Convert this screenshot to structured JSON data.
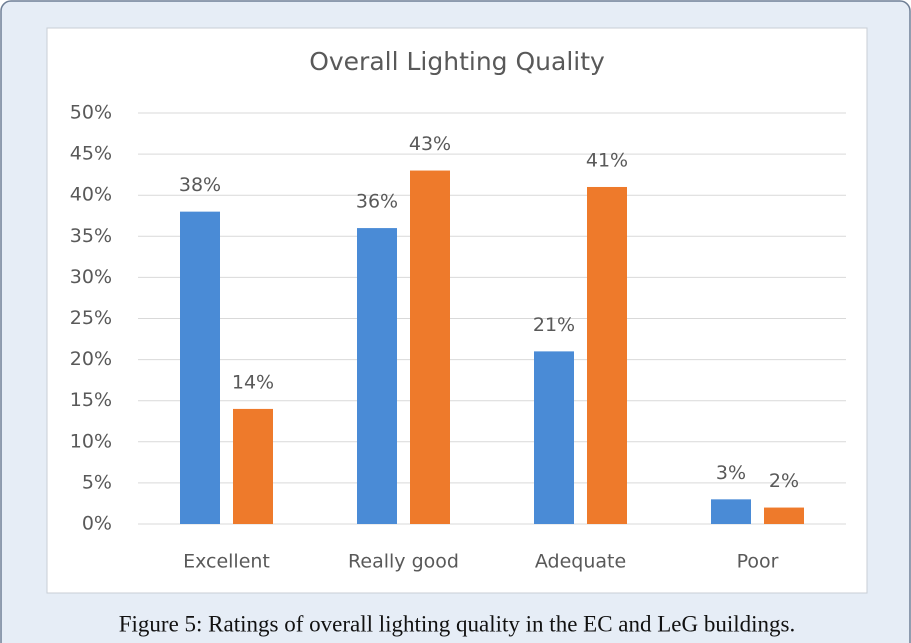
{
  "chart_data": {
    "type": "bar",
    "title": "Overall Lighting Quality",
    "categories": [
      "Excellent",
      "Really good",
      "Adequate",
      "Poor"
    ],
    "series": [
      {
        "color": "#4a8bd6",
        "values": [
          38,
          36,
          21,
          3
        ],
        "value_labels": [
          "38%",
          "36%",
          "21%",
          "3%"
        ]
      },
      {
        "color": "#ee7a2b",
        "values": [
          14,
          43,
          41,
          2
        ],
        "value_labels": [
          "14%",
          "43%",
          "41%",
          "2%"
        ]
      }
    ],
    "ylim": [
      0,
      50
    ],
    "yticks": [
      {
        "value": 0,
        "label": "0%"
      },
      {
        "value": 5,
        "label": "5%"
      },
      {
        "value": 10,
        "label": "10%"
      },
      {
        "value": 15,
        "label": "15%"
      },
      {
        "value": 20,
        "label": "20%"
      },
      {
        "value": 25,
        "label": "25%"
      },
      {
        "value": 30,
        "label": "30%"
      },
      {
        "value": 35,
        "label": "35%"
      },
      {
        "value": 40,
        "label": "40%"
      },
      {
        "value": 45,
        "label": "45%"
      },
      {
        "value": 50,
        "label": "50%"
      }
    ],
    "grid": true
  },
  "caption": "Figure 5: Ratings of overall lighting quality in the EC and LeG buildings."
}
